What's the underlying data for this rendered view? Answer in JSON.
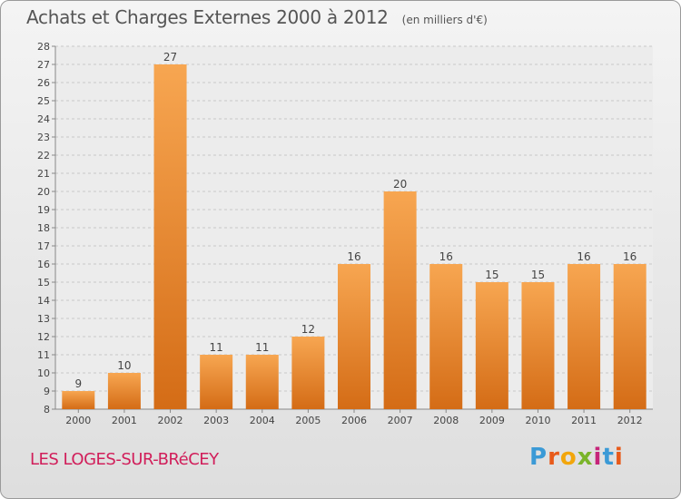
{
  "header": {
    "title": "Achats et Charges Externes 2000 à 2012",
    "subtitle": "(en milliers d'€)"
  },
  "footer": {
    "commune": "LES LOGES-SUR-BRéCEY",
    "brand": [
      "P",
      "r",
      "o",
      "x",
      "i",
      "t",
      "i"
    ]
  },
  "chart_data": {
    "type": "bar",
    "title": "Achats et Charges Externes 2000 à 2012",
    "subtitle": "(en milliers d'€)",
    "categories": [
      "2000",
      "2001",
      "2002",
      "2003",
      "2004",
      "2005",
      "2006",
      "2007",
      "2008",
      "2009",
      "2010",
      "2011",
      "2012"
    ],
    "values": [
      9,
      10,
      27,
      11,
      11,
      12,
      16,
      20,
      16,
      15,
      15,
      16,
      16
    ],
    "ylim": [
      8,
      28
    ],
    "yticks": [
      8,
      9,
      10,
      11,
      12,
      13,
      14,
      15,
      16,
      17,
      18,
      19,
      20,
      21,
      22,
      23,
      24,
      25,
      26,
      27,
      28
    ],
    "grid": true,
    "colors": {
      "bar_light": "#f7a651",
      "bar_dark": "#d46c16",
      "grid": "#c8c8c8",
      "text": "#444444"
    }
  }
}
